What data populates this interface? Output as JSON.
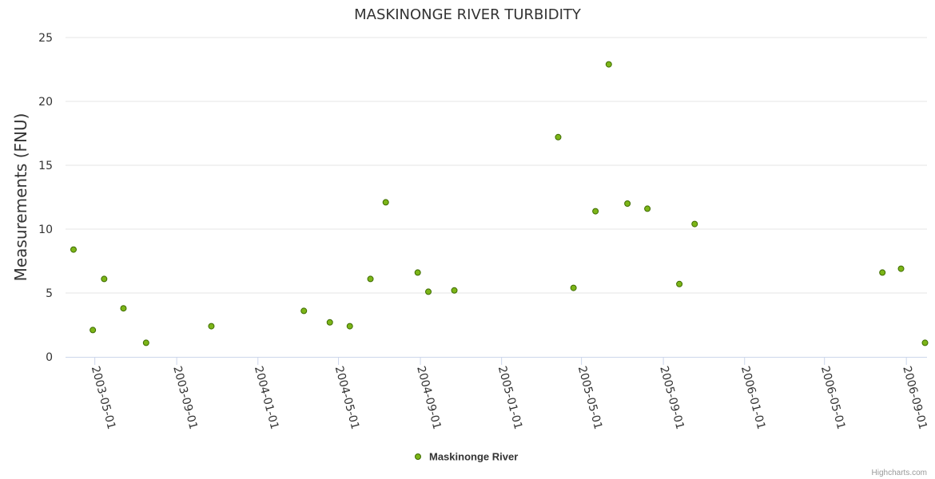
{
  "chart_data": {
    "type": "scatter",
    "title": "MASKINONGE RIVER TURBIDITY",
    "xlabel": "",
    "ylabel": "Measurements (FNU)",
    "ylim": [
      0,
      25
    ],
    "yticks": [
      0,
      5,
      10,
      15,
      20,
      25
    ],
    "xlim": [
      "2003-03-18",
      "2006-10-02"
    ],
    "xticks": [
      "2003-05-01",
      "2003-09-01",
      "2004-01-01",
      "2004-05-01",
      "2004-09-01",
      "2005-01-01",
      "2005-05-01",
      "2005-09-01",
      "2006-01-01",
      "2006-05-01",
      "2006-09-01"
    ],
    "grid": true,
    "legend_position": "bottom-center",
    "colors": {
      "marker_fill": "#7cb518",
      "marker_stroke": "#3d6b00",
      "grid": "#e6e6e6",
      "axis": "#ccd6eb"
    },
    "series": [
      {
        "name": "Maskinonge River",
        "points": [
          {
            "x": "2003-03-30",
            "y": 8.4
          },
          {
            "x": "2003-04-28",
            "y": 2.1
          },
          {
            "x": "2003-05-15",
            "y": 6.1
          },
          {
            "x": "2003-06-13",
            "y": 3.8
          },
          {
            "x": "2003-07-17",
            "y": 1.1
          },
          {
            "x": "2003-10-23",
            "y": 2.4
          },
          {
            "x": "2004-03-10",
            "y": 3.6
          },
          {
            "x": "2004-04-18",
            "y": 2.7
          },
          {
            "x": "2004-05-18",
            "y": 2.4
          },
          {
            "x": "2004-06-18",
            "y": 6.1
          },
          {
            "x": "2004-07-11",
            "y": 12.1
          },
          {
            "x": "2004-08-28",
            "y": 6.6
          },
          {
            "x": "2004-09-13",
            "y": 5.1
          },
          {
            "x": "2004-10-22",
            "y": 5.2
          },
          {
            "x": "2005-03-27",
            "y": 17.2
          },
          {
            "x": "2005-04-19",
            "y": 5.4
          },
          {
            "x": "2005-05-22",
            "y": 11.4
          },
          {
            "x": "2005-06-11",
            "y": 22.9
          },
          {
            "x": "2005-07-09",
            "y": 12.0
          },
          {
            "x": "2005-08-08",
            "y": 11.6
          },
          {
            "x": "2005-09-25",
            "y": 5.7
          },
          {
            "x": "2005-10-18",
            "y": 10.4
          },
          {
            "x": "2006-07-27",
            "y": 6.6
          },
          {
            "x": "2006-08-24",
            "y": 6.9
          },
          {
            "x": "2006-09-29",
            "y": 1.1
          }
        ]
      }
    ]
  },
  "credits": "Highcharts.com"
}
